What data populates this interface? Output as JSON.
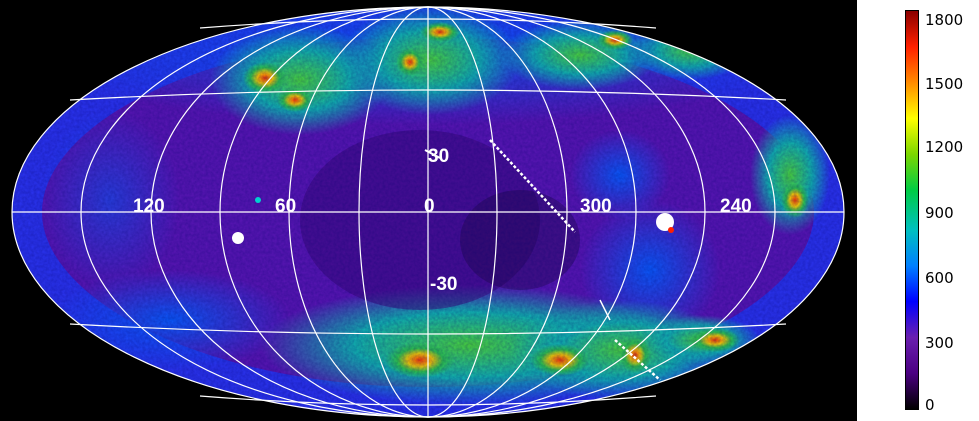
{
  "map": {
    "projection": "Aitoff/Hammer all-sky",
    "coordinate_grid": "galactic",
    "background": "#000000",
    "grid_color": "#ffffff",
    "longitude_labels": [
      "120",
      "60",
      "0",
      "300",
      "240"
    ],
    "latitude_labels": [
      "30",
      "-30"
    ]
  },
  "colorbar": {
    "ticks": [
      "1800",
      "1500",
      "1200",
      "900",
      "600",
      "300",
      "0"
    ],
    "colors": [
      "#000000",
      "#4b0082",
      "#6a1fb0",
      "#0000ff",
      "#0080ff",
      "#00c0c0",
      "#00cc44",
      "#7cd700",
      "#ffff00",
      "#ff8c00",
      "#ff2000",
      "#8b0000"
    ]
  }
}
